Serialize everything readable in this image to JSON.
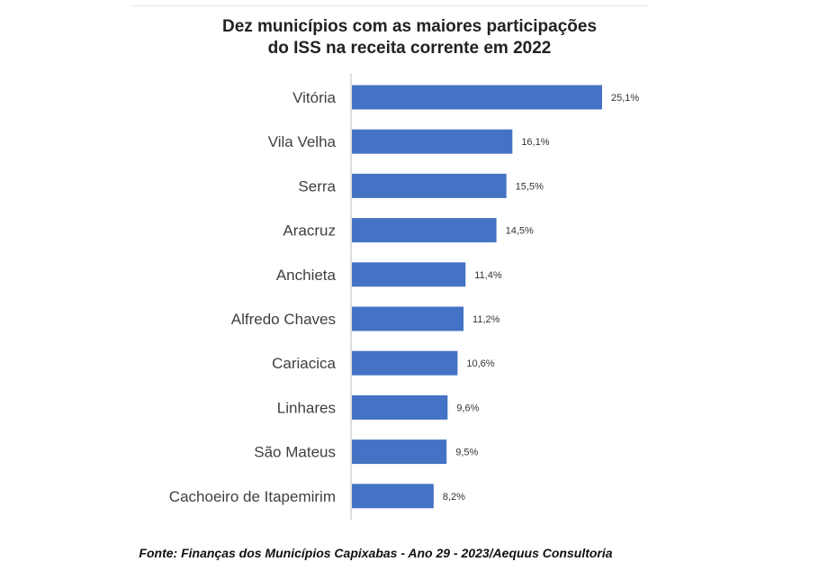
{
  "chart_data": {
    "type": "bar",
    "orientation": "horizontal",
    "title_lines": [
      "Dez municípios com as maiores participações",
      "do ISS na receita corrente em 2022"
    ],
    "categories": [
      "Vitória",
      "Vila Velha",
      "Serra",
      "Aracruz",
      "Anchieta",
      "Alfredo Chaves",
      "Cariacica",
      "Linhares",
      "São Mateus",
      "Cachoeiro de Itapemirim"
    ],
    "values": [
      25.1,
      16.1,
      15.5,
      14.5,
      11.4,
      11.2,
      10.6,
      9.6,
      9.5,
      8.2
    ],
    "value_labels": [
      "25,1%",
      "16,1%",
      "15,5%",
      "14,5%",
      "11,4%",
      "11,2%",
      "10,6%",
      "9,6%",
      "9,5%",
      "8,2%"
    ],
    "unit": "%",
    "xlim": [
      0,
      25.1
    ],
    "grid": false,
    "legend": "none",
    "bar_color": "#4472c4",
    "axis_color": "#bfbfbf",
    "label_color": "#404040"
  },
  "source": "Fonte: Finanças dos Municípios Capixabas - Ano 29 - 2023/Aequus Consultoria"
}
